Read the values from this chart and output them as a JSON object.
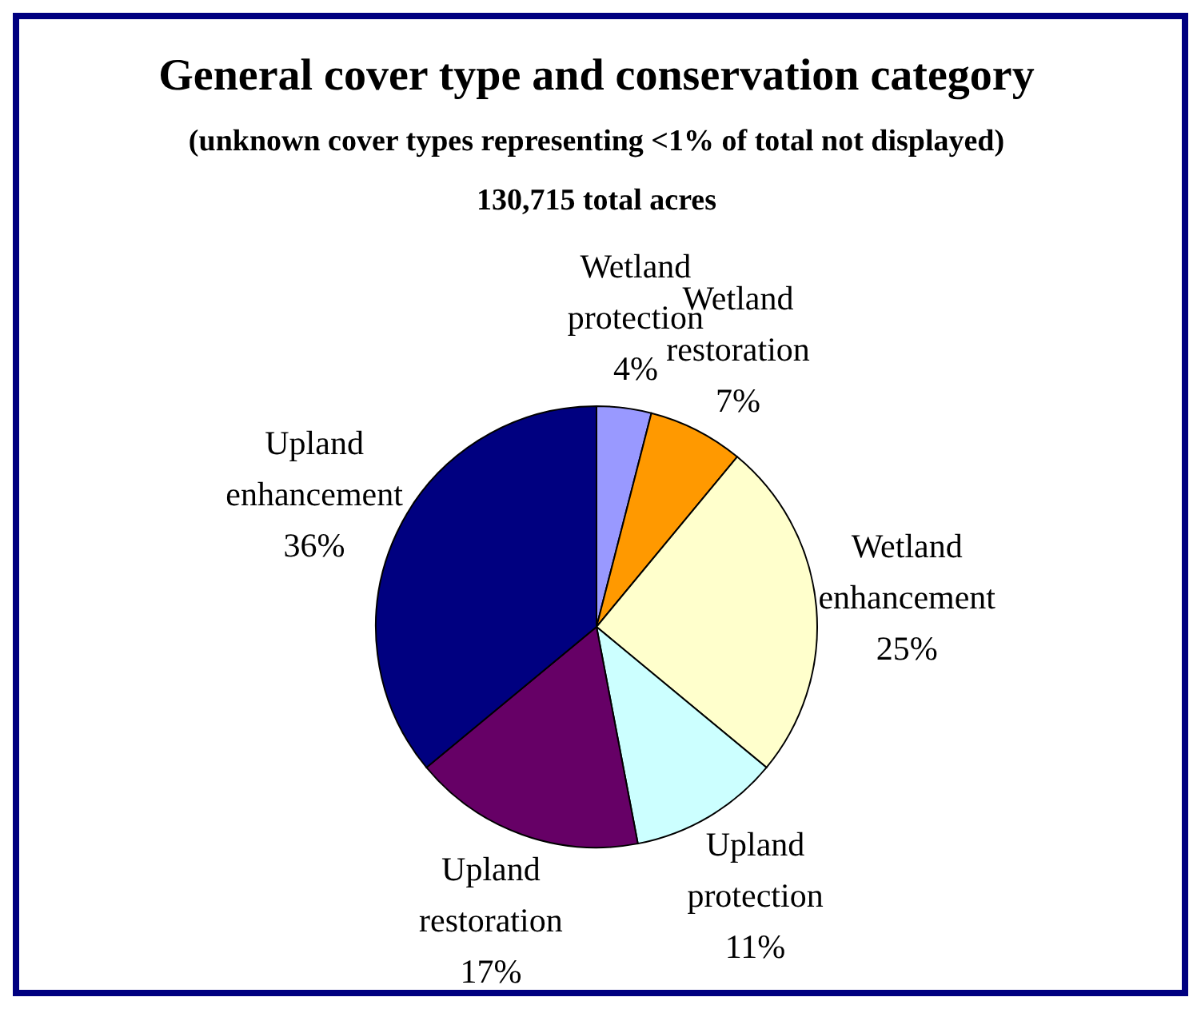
{
  "chart_data": {
    "type": "pie",
    "title": "General cover type and conservation category",
    "subtitle": "(unknown cover types representing <1% of total not displayed)",
    "annotations": [
      "130,715 total acres"
    ],
    "categories": [
      "Wetland protection",
      "Wetland restoration",
      "Wetland enhancement",
      "Upland protection",
      "Upland restoration",
      "Upland enhancement"
    ],
    "values": [
      4,
      7,
      25,
      11,
      17,
      36
    ],
    "value_labels": [
      "4%",
      "7%",
      "25%",
      "11%",
      "17%",
      "36%"
    ],
    "colors": [
      "#9999ff",
      "#ff9900",
      "#ffffcc",
      "#ccffff",
      "#660066",
      "#000080"
    ]
  }
}
